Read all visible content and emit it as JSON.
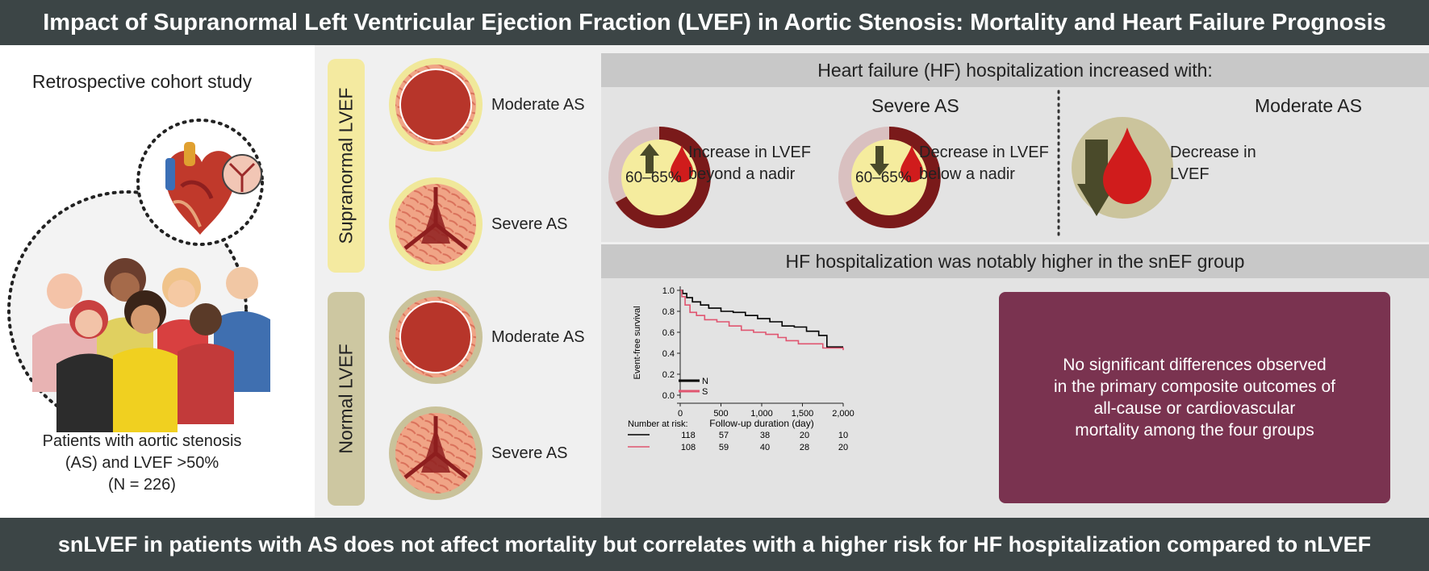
{
  "title": "Impact of Supranormal Left Ventricular Ejection Fraction (LVEF) in Aortic Stenosis: Mortality and Heart Failure Prognosis",
  "footer": "snLVEF in patients with AS does not affect mortality but correlates with a higher risk for HF hospitalization compared to nLVEF",
  "left": {
    "study_type": "Retrospective cohort study",
    "caption_line1": "Patients with aortic stenosis",
    "caption_line2": "(AS) and LVEF >50%",
    "caption_line3": "(N = 226)"
  },
  "groups": {
    "supranormal": "Supranormal LVEF",
    "normal": "Normal LVEF",
    "moderate": "Moderate AS",
    "severe": "Severe AS"
  },
  "hf": {
    "header": "Heart failure (HF) hospitalization increased with:",
    "severe_title": "Severe AS",
    "moderate_title": "Moderate AS",
    "range_label": "60–65%",
    "increase_line1": "Increase in LVEF",
    "increase_line2": "beyond a nadir",
    "decrease_line1": "Decrease in LVEF",
    "decrease_line2": "below a nadir",
    "mod_decrease_line1": "Decrease in",
    "mod_decrease_line2": "LVEF"
  },
  "km": {
    "header": "HF hospitalization was notably higher in the snEF group"
  },
  "note": {
    "line1": "No significant differences observed",
    "line2": "in the primary composite outcomes of",
    "line3": "all-cause or cardiovascular",
    "line4": "mortality among the four groups"
  },
  "colors": {
    "dark_bar": "#3c4546",
    "valve_supra_pill": "#f4eaa0",
    "valve_normal_pill": "#cdc7a1",
    "donut_dark": "#7a1a1a",
    "donut_light": "#d8c0c0",
    "note_box": "#7a3350",
    "series_n": "#000000",
    "series_s": "#e05570"
  },
  "chart_data": {
    "type": "line",
    "xlabel": "Follow-up duration (day)",
    "ylabel": "Event-free survival",
    "xlim": [
      0,
      2000
    ],
    "ylim": [
      0,
      1.0
    ],
    "x_ticks": [
      "0",
      "500",
      "1,000",
      "1,500",
      "2,000"
    ],
    "y_ticks": [
      "0.0",
      "0.2",
      "0.4",
      "0.6",
      "0.8",
      "1.0"
    ],
    "series": [
      {
        "name": "N",
        "color": "#000000",
        "points": [
          [
            0,
            1.0
          ],
          [
            30,
            0.97
          ],
          [
            80,
            0.93
          ],
          [
            150,
            0.89
          ],
          [
            250,
            0.86
          ],
          [
            350,
            0.83
          ],
          [
            500,
            0.8
          ],
          [
            650,
            0.79
          ],
          [
            800,
            0.76
          ],
          [
            950,
            0.73
          ],
          [
            1100,
            0.7
          ],
          [
            1250,
            0.66
          ],
          [
            1400,
            0.65
          ],
          [
            1550,
            0.61
          ],
          [
            1700,
            0.57
          ],
          [
            1800,
            0.46
          ],
          [
            2000,
            0.46
          ]
        ]
      },
      {
        "name": "S",
        "color": "#e05570",
        "points": [
          [
            0,
            1.0
          ],
          [
            20,
            0.94
          ],
          [
            60,
            0.86
          ],
          [
            120,
            0.79
          ],
          [
            200,
            0.76
          ],
          [
            300,
            0.72
          ],
          [
            450,
            0.7
          ],
          [
            600,
            0.66
          ],
          [
            750,
            0.62
          ],
          [
            900,
            0.6
          ],
          [
            1050,
            0.58
          ],
          [
            1200,
            0.55
          ],
          [
            1300,
            0.52
          ],
          [
            1450,
            0.49
          ],
          [
            1600,
            0.49
          ],
          [
            1750,
            0.45
          ],
          [
            2000,
            0.43
          ]
        ]
      }
    ],
    "number_at_risk_label": "Number at risk:",
    "number_at_risk": [
      {
        "name": "N",
        "values": [
          "118",
          "57",
          "38",
          "20",
          "10"
        ]
      },
      {
        "name": "S",
        "values": [
          "108",
          "59",
          "40",
          "28",
          "20"
        ]
      }
    ]
  }
}
